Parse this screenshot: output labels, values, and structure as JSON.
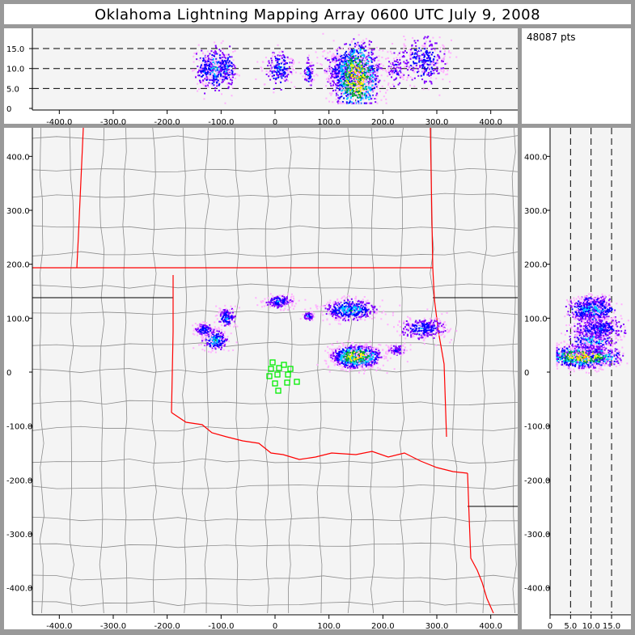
{
  "title": "Oklahoma Lightning Mapping Array   0600 UTC  July 9, 2008",
  "info": {
    "point_count": "48087 pts"
  },
  "colors": {
    "frame": "#999999",
    "plot_bg": "#f4f4f4",
    "county_lines": "#8c8c8c",
    "state_lines": "#ff0000",
    "stations": "#00ee00",
    "density_scale": [
      "#ffb0ff",
      "#8000ff",
      "#0000ff",
      "#00c8ff",
      "#00a030",
      "#ffff00",
      "#ff9000",
      "#ff0000"
    ]
  },
  "chart_data": [
    {
      "type": "scatter",
      "view": "east-west vs altitude",
      "xlim": [
        -450,
        450
      ],
      "ylim": [
        0,
        19.5
      ],
      "x_ticks": [
        "-400.0",
        "-300.0",
        "-200.0",
        "-100.0",
        "0",
        "100.0",
        "200.0",
        "300.0",
        "400.0"
      ],
      "y_ticks": [
        "0",
        "5.0",
        "10.0",
        "15.0"
      ],
      "dashed_levels": [
        5,
        10,
        15
      ]
    },
    {
      "type": "scatter",
      "view": "plan (map)",
      "xlim": [
        -450,
        450
      ],
      "ylim": [
        -450,
        450
      ],
      "x_ticks": [
        "-400.0",
        "-300.0",
        "-200.0",
        "-100.0",
        "0",
        "100.0",
        "200.0",
        "300.0",
        "400.0"
      ],
      "y_ticks": [
        "400.0",
        "300.0",
        "200.0",
        "100.0",
        "0",
        "-100.0",
        "-200.0",
        "-300.0",
        "-400.0"
      ],
      "stations": [
        [
          -4.5,
          18
        ],
        [
          16.5,
          13.5
        ],
        [
          -7.5,
          6
        ],
        [
          7.5,
          7.5
        ],
        [
          28.5,
          6
        ],
        [
          -10.5,
          -7.5
        ],
        [
          4.5,
          -4.5
        ],
        [
          24,
          -4.5
        ],
        [
          0,
          -21
        ],
        [
          22.5,
          -19.5
        ],
        [
          40.5,
          -18
        ],
        [
          6,
          -34.5
        ]
      ]
    },
    {
      "type": "scatter",
      "view": "altitude vs north-south",
      "xlim": [
        0,
        19.5
      ],
      "ylim": [
        -450,
        450
      ],
      "x_ticks": [
        "0",
        "5.0",
        "10.0",
        "15.0"
      ],
      "dashed_levels": [
        5,
        10,
        15
      ]
    }
  ],
  "source_clusters": [
    {
      "x": -112,
      "y": 60,
      "alt": 10,
      "sx": 12,
      "sy": 9,
      "sz": 2.2,
      "peak": 4,
      "n": 260
    },
    {
      "x": -132,
      "y": 80,
      "alt": 10,
      "sx": 10,
      "sy": 6,
      "sz": 2.2,
      "peak": 3,
      "n": 140
    },
    {
      "x": -90,
      "y": 102,
      "alt": 10,
      "sx": 9,
      "sy": 10,
      "sz": 2.2,
      "peak": 3,
      "n": 140
    },
    {
      "x": 7,
      "y": 132,
      "alt": 10,
      "sx": 14,
      "sy": 6,
      "sz": 2.2,
      "peak": 3,
      "n": 200
    },
    {
      "x": 61,
      "y": 105,
      "alt": 9,
      "sx": 5,
      "sy": 4,
      "sz": 1.6,
      "peak": 3,
      "n": 80
    },
    {
      "x": 138,
      "y": 117,
      "alt": 10,
      "sx": 24,
      "sy": 10,
      "sz": 2.5,
      "peak": 4,
      "n": 500
    },
    {
      "x": 150,
      "y": 30,
      "alt": 8,
      "sx": 22,
      "sy": 10,
      "sz": 3.5,
      "peak": 7,
      "n": 1100
    },
    {
      "x": 225,
      "y": 42,
      "alt": 10,
      "sx": 10,
      "sy": 5,
      "sz": 2.5,
      "peak": 2,
      "n": 90
    },
    {
      "x": 273,
      "y": 82,
      "alt": 12,
      "sx": 22,
      "sy": 10,
      "sz": 2.5,
      "peak": 3,
      "n": 320
    }
  ]
}
